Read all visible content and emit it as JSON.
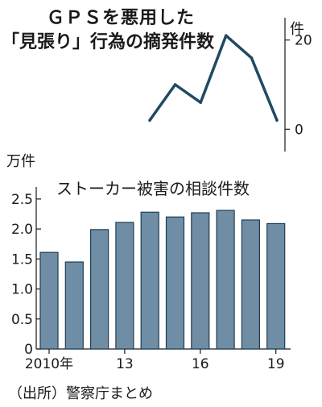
{
  "header": {
    "title_line1": "ＧＰＳを悪用した",
    "title_line2": "「見張り」行為の摘発件数"
  },
  "source": "（出所）警察庁まとめ",
  "colors": {
    "line": "#1f4a63",
    "bar_fill": "#6f8ea6",
    "bar_stroke": "#1f3d52",
    "axis": "#1a1a1a"
  },
  "chart_data": [
    {
      "type": "line",
      "title": "ＧＰＳを悪用した「見張り」行為の摘発件数",
      "ylabel": "件",
      "x": [
        2014,
        2015,
        2016,
        2017,
        2018,
        2019
      ],
      "series": [
        {
          "values": [
            2,
            10,
            6,
            21,
            16,
            2
          ]
        }
      ],
      "yticks": [
        0,
        20
      ],
      "ylim": [
        -5,
        25
      ],
      "grid": false
    },
    {
      "type": "bar",
      "title": "ストーカー被害の相談件数",
      "ylabel": "万件",
      "categories": [
        "2010",
        "2011",
        "2012",
        "2013",
        "2014",
        "2015",
        "2016",
        "2017",
        "2018",
        "2019"
      ],
      "xtick_labels": [
        {
          "category": "2010",
          "label": "2010年"
        },
        {
          "category": "2013",
          "label": "13"
        },
        {
          "category": "2016",
          "label": "16"
        },
        {
          "category": "2019",
          "label": "19"
        }
      ],
      "values": [
        1.61,
        1.45,
        1.99,
        2.11,
        2.28,
        2.2,
        2.27,
        2.31,
        2.15,
        2.09
      ],
      "yticks": [
        0,
        0.5,
        1.0,
        1.5,
        2.0,
        2.5
      ],
      "ytick_labels": [
        "0",
        "0.5",
        "1.0",
        "1.5",
        "2.0",
        "2.5"
      ],
      "ylim": [
        0,
        2.7
      ],
      "grid": false
    }
  ]
}
